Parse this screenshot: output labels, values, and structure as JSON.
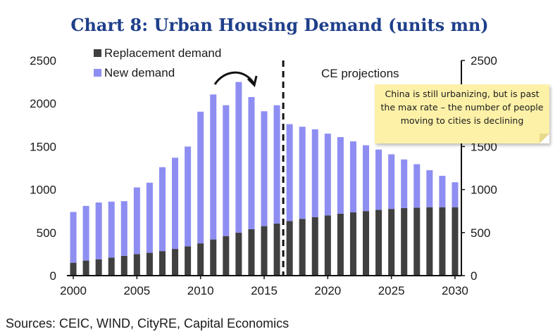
{
  "chart_data": {
    "type": "bar",
    "stacked": true,
    "title": "Chart 8: Urban Housing Demand (units mn)",
    "x": [
      2000,
      2001,
      2002,
      2003,
      2004,
      2005,
      2006,
      2007,
      2008,
      2009,
      2010,
      2011,
      2012,
      2013,
      2014,
      2015,
      2016,
      2017,
      2018,
      2019,
      2020,
      2021,
      2022,
      2023,
      2024,
      2025,
      2026,
      2027,
      2028,
      2029,
      2030
    ],
    "series": [
      {
        "name": "Replacement demand",
        "color": "#404040",
        "values": [
          150,
          175,
          190,
          210,
          230,
          250,
          265,
          285,
          310,
          340,
          375,
          420,
          460,
          500,
          540,
          575,
          605,
          635,
          660,
          680,
          700,
          720,
          735,
          750,
          765,
          775,
          785,
          790,
          795,
          795,
          795
        ]
      },
      {
        "name": "New demand",
        "color": "#8e8ef2",
        "values": [
          590,
          635,
          660,
          650,
          635,
          775,
          815,
          975,
          1060,
          1160,
          1530,
          1685,
          1520,
          1750,
          1535,
          1335,
          1375,
          1125,
          1070,
          1020,
          950,
          890,
          825,
          765,
          700,
          635,
          565,
          505,
          430,
          365,
          290
        ]
      }
    ],
    "ylim": [
      0,
      2500
    ],
    "yticks": [
      0,
      500,
      1000,
      1500,
      2000,
      2500
    ],
    "xticks": [
      2000,
      2005,
      2010,
      2015,
      2020,
      2025,
      2030
    ],
    "projection_start_after": 2016,
    "projection_label": "CE projections",
    "annotation": "China is still urbanizing, but is past the max rate – the number of people moving to cities is declining",
    "legend_position": "top-left",
    "source": "Sources: CEIC, WIND, CityRE, Capital Economics"
  }
}
